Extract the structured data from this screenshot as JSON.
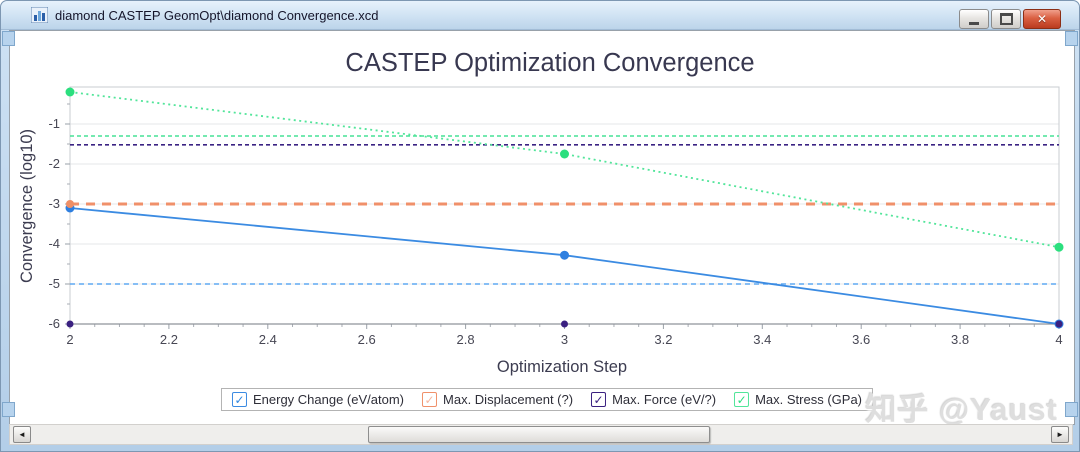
{
  "window": {
    "title": "diamond CASTEP GeomOpt\\diamond Convergence.xcd",
    "icons": {
      "close": "✕",
      "scroll_left": "◄",
      "scroll_right": "►",
      "checkmark": "✓"
    }
  },
  "watermark": "知乎 @Yaust",
  "chart_data": {
    "type": "line",
    "title": "CASTEP Optimization Convergence",
    "xlabel": "Optimization Step",
    "ylabel": "Convergence (log10)",
    "xlim": [
      2,
      4
    ],
    "ylim": [
      -6,
      -0.075
    ],
    "grid": "horizontal-major",
    "legend_position": "bottom-center",
    "x_major_ticks": {
      "values": [
        2,
        2.2,
        2.4,
        2.6,
        2.8,
        3,
        3.2,
        3.4,
        3.6,
        3.8,
        4
      ],
      "labels": [
        "2",
        "2.2",
        "2.4",
        "2.6",
        "2.8",
        "3",
        "3.2",
        "3.4",
        "3.6",
        "3.8",
        "4"
      ]
    },
    "x_minor_step": 0.05,
    "y_major_ticks": {
      "values": [
        -1,
        -2,
        -3,
        -4,
        -5,
        -6
      ],
      "labels": [
        "-1",
        "-2",
        "-3",
        "-4",
        "-5",
        "-6"
      ]
    },
    "y_minor_step": 0.5,
    "series": [
      {
        "name": "Energy Change (eV/atom)",
        "color": "#3b8be2",
        "marker_color": "#2e7fe0",
        "check_color": "#2f86e0",
        "line": "solid",
        "marker_r": 4.5,
        "x": [
          2,
          3,
          4
        ],
        "y": [
          -3.1,
          -4.28,
          -6.0
        ],
        "threshold": -5.0,
        "threshold_color": "#5fa8f2",
        "threshold_dash": "blue-thin"
      },
      {
        "name": "Max. Displacement (?)",
        "color": "#f0906a",
        "marker_color": "#ef8f66",
        "check_color": "#f6b79e",
        "line": "none",
        "marker_r": 4,
        "x": [
          2
        ],
        "y": [
          -3.0
        ],
        "threshold": -3.0,
        "threshold_color": "#f0906a",
        "threshold_dash": "thick"
      },
      {
        "name": "Max. Force (eV/?)",
        "color": "#3a2080",
        "marker_color": "#3a2080",
        "check_color": "#3a2080",
        "line": "none",
        "marker_r": 3.5,
        "x": [
          2,
          3,
          4
        ],
        "y": [
          -6.0,
          -6.0,
          -6.0
        ],
        "threshold": -1.52,
        "threshold_color": "#3b2383",
        "threshold_dash": "thin"
      },
      {
        "name": "Max. Stress (GPa)",
        "color": "#52e59a",
        "marker_color": "#2bdf7e",
        "check_color": "#2bdf7e",
        "line": "dotted",
        "marker_r": 4.5,
        "x": [
          2,
          3,
          4
        ],
        "y": [
          -0.2,
          -1.75,
          -4.08
        ],
        "threshold": -1.3,
        "threshold_color": "#47e295",
        "threshold_dash": "thin"
      }
    ]
  }
}
